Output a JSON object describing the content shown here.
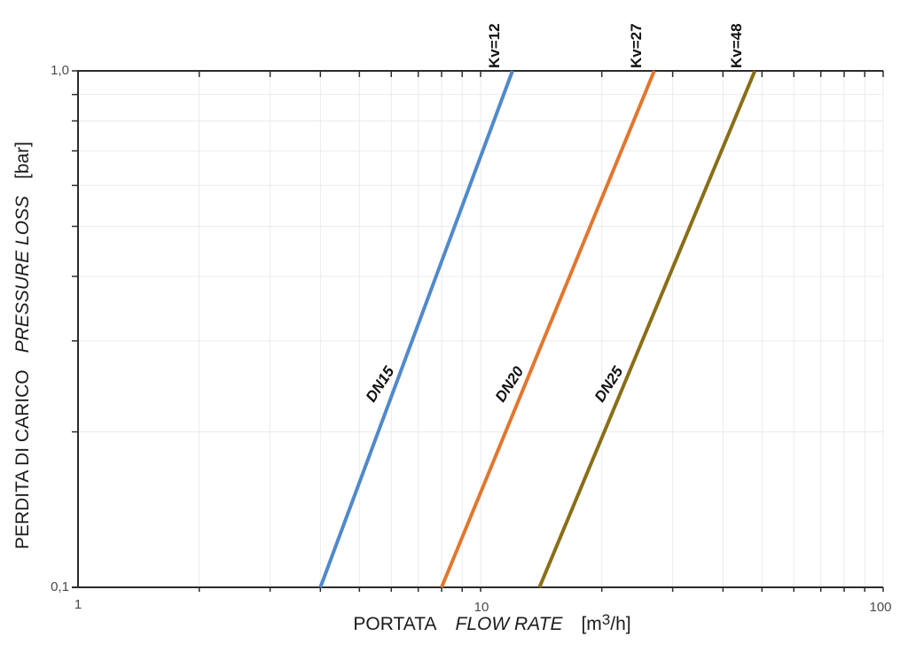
{
  "chart_data": {
    "type": "line",
    "title": "",
    "scale": "log-log",
    "x_axis": {
      "label_it": "PORTATA",
      "label_en": "FLOW RATE",
      "unit_prefix": "[m",
      "unit_sup": "3",
      "unit_suffix": "/h]",
      "scale": "log",
      "range": [
        1,
        100
      ],
      "tick_labels": [
        "1",
        "10",
        "100"
      ],
      "tick_values": [
        1,
        10,
        100
      ]
    },
    "y_axis": {
      "label_it": "PERDITA DI CARICO",
      "label_en": "PRESSURE LOSS",
      "unit": "[bar]",
      "scale": "log",
      "range": [
        0.1,
        1.0
      ],
      "tick_labels": [
        "1,0",
        "0,1"
      ],
      "tick_values": [
        1.0,
        0.1
      ]
    },
    "series": [
      {
        "name": "DN15",
        "kv_label": "Kv=12",
        "kv": 12,
        "color": "#5189CB",
        "points": [
          [
            4.0,
            0.1
          ],
          [
            12,
            1.0
          ]
        ]
      },
      {
        "name": "DN20",
        "kv_label": "Kv=27",
        "kv": 27,
        "color": "#E2762F",
        "points": [
          [
            8.0,
            0.1
          ],
          [
            27,
            1.0
          ]
        ]
      },
      {
        "name": "DN25",
        "kv_label": "Kv=48",
        "kv": 48,
        "color": "#8A6E17",
        "points": [
          [
            14.0,
            0.1
          ],
          [
            48,
            1.0
          ]
        ]
      }
    ],
    "grid": {
      "show": true,
      "color": "#EBEBEB",
      "minor_log_gridlines_x": [
        2,
        3,
        4,
        5,
        6,
        7,
        8,
        9,
        10,
        20,
        30,
        40,
        50,
        60,
        70,
        80,
        90,
        100
      ],
      "minor_log_gridlines_y": [
        0.2,
        0.3,
        0.4,
        0.5,
        0.6,
        0.7,
        0.8,
        0.9
      ]
    },
    "axis_color": "#2B2B2B",
    "tick_label_color": "#4A4A4A",
    "legend_position": "none"
  }
}
